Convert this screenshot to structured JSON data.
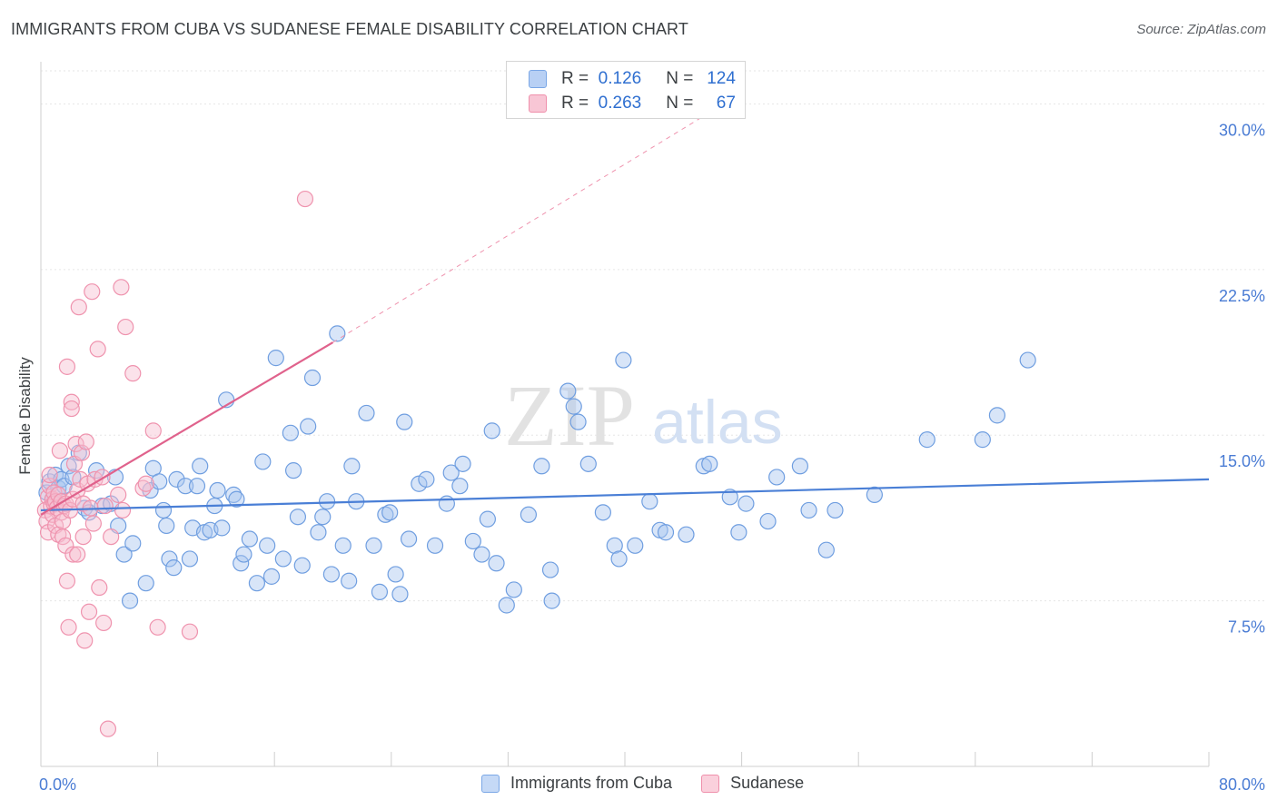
{
  "title": "IMMIGRANTS FROM CUBA VS SUDANESE FEMALE DISABILITY CORRELATION CHART",
  "source": "Source: ZipAtlas.com",
  "watermark": {
    "zip": "ZIP",
    "atlas": "atlas"
  },
  "legend": {
    "rows": [
      {
        "r_label": "R =",
        "r_value": "0.126",
        "n_label": "N =",
        "n_value": "124",
        "color": "#7aa7e6",
        "fill": "#b8d0f4"
      },
      {
        "r_label": "R =",
        "r_value": "0.263",
        "n_label": "N =",
        "n_value": "67",
        "color": "#ef8fab",
        "fill": "#f8c6d5"
      }
    ]
  },
  "bottom_legend": [
    {
      "label": "Immigrants from Cuba",
      "color": "#7aa7e6",
      "fill": "#c5d9f6"
    },
    {
      "label": "Sudanese",
      "color": "#ef8fab",
      "fill": "#fad0dc"
    }
  ],
  "chart_data": {
    "type": "scatter",
    "title": "IMMIGRANTS FROM CUBA VS SUDANESE FEMALE DISABILITY CORRELATION CHART",
    "xlabel": "",
    "ylabel": "Female Disability",
    "xlim": [
      0,
      80
    ],
    "ylim": [
      0,
      31.5
    ],
    "x_tick_labels": [
      "0.0%",
      "80.0%"
    ],
    "y_ticks": [
      7.5,
      15.0,
      22.5,
      30.0
    ],
    "y_tick_labels": [
      "7.5%",
      "15.0%",
      "22.5%",
      "30.0%"
    ],
    "grid": true,
    "series": [
      {
        "name": "Immigrants from Cuba",
        "color": "#4a7fd6",
        "stroke": "#6f9ee0",
        "fill": "#a9c6f0",
        "trend": {
          "x0": 0,
          "y0": 11.6,
          "x1": 80,
          "y1": 13.0,
          "dashed_to": null
        },
        "points": [
          [
            0.4,
            12.4
          ],
          [
            0.6,
            12.9
          ],
          [
            0.8,
            12.1
          ],
          [
            1.0,
            13.2
          ],
          [
            1.2,
            12.6
          ],
          [
            1.4,
            13.0
          ],
          [
            1.6,
            12.7
          ],
          [
            1.9,
            13.6
          ],
          [
            2.2,
            13.1
          ],
          [
            2.6,
            14.2
          ],
          [
            3.0,
            11.7
          ],
          [
            3.3,
            11.5
          ],
          [
            3.8,
            13.4
          ],
          [
            4.2,
            11.8
          ],
          [
            4.8,
            11.9
          ],
          [
            5.1,
            13.1
          ],
          [
            5.3,
            10.9
          ],
          [
            5.7,
            9.6
          ],
          [
            6.1,
            7.5
          ],
          [
            6.3,
            10.1
          ],
          [
            7.2,
            8.3
          ],
          [
            7.5,
            12.5
          ],
          [
            7.7,
            13.5
          ],
          [
            8.1,
            12.9
          ],
          [
            8.4,
            11.6
          ],
          [
            8.6,
            10.9
          ],
          [
            8.8,
            9.4
          ],
          [
            9.1,
            9.0
          ],
          [
            9.3,
            13.0
          ],
          [
            9.9,
            12.7
          ],
          [
            10.2,
            9.4
          ],
          [
            10.4,
            10.8
          ],
          [
            10.7,
            12.7
          ],
          [
            10.9,
            13.6
          ],
          [
            11.2,
            10.6
          ],
          [
            11.6,
            10.7
          ],
          [
            11.9,
            11.8
          ],
          [
            12.1,
            12.5
          ],
          [
            12.4,
            10.8
          ],
          [
            12.7,
            16.6
          ],
          [
            13.2,
            12.3
          ],
          [
            13.4,
            12.1
          ],
          [
            13.7,
            9.2
          ],
          [
            13.9,
            9.6
          ],
          [
            14.3,
            10.3
          ],
          [
            14.8,
            8.3
          ],
          [
            15.2,
            13.8
          ],
          [
            15.5,
            10.0
          ],
          [
            15.8,
            8.6
          ],
          [
            16.1,
            18.5
          ],
          [
            16.6,
            9.4
          ],
          [
            17.1,
            15.1
          ],
          [
            17.3,
            13.4
          ],
          [
            17.6,
            11.3
          ],
          [
            17.9,
            9.1
          ],
          [
            18.3,
            15.4
          ],
          [
            18.6,
            17.6
          ],
          [
            19.0,
            10.6
          ],
          [
            19.3,
            11.3
          ],
          [
            19.6,
            12.0
          ],
          [
            19.9,
            8.7
          ],
          [
            20.3,
            19.6
          ],
          [
            20.7,
            10.0
          ],
          [
            21.1,
            8.4
          ],
          [
            21.3,
            13.6
          ],
          [
            21.6,
            12.0
          ],
          [
            22.3,
            16.0
          ],
          [
            22.8,
            10.0
          ],
          [
            23.2,
            7.9
          ],
          [
            23.6,
            11.4
          ],
          [
            23.9,
            11.5
          ],
          [
            24.3,
            8.7
          ],
          [
            24.6,
            7.8
          ],
          [
            24.9,
            15.6
          ],
          [
            25.2,
            10.3
          ],
          [
            25.9,
            12.8
          ],
          [
            26.4,
            13.0
          ],
          [
            27.0,
            10.0
          ],
          [
            27.8,
            11.9
          ],
          [
            28.1,
            13.3
          ],
          [
            28.7,
            12.7
          ],
          [
            28.9,
            13.7
          ],
          [
            29.6,
            10.2
          ],
          [
            30.2,
            9.6
          ],
          [
            30.6,
            11.2
          ],
          [
            30.9,
            15.2
          ],
          [
            31.2,
            9.2
          ],
          [
            31.9,
            7.3
          ],
          [
            32.4,
            8.0
          ],
          [
            33.4,
            11.4
          ],
          [
            34.3,
            13.6
          ],
          [
            34.9,
            8.9
          ],
          [
            35.0,
            7.5
          ],
          [
            36.1,
            17.0
          ],
          [
            36.5,
            16.3
          ],
          [
            36.8,
            15.6
          ],
          [
            37.5,
            13.7
          ],
          [
            38.5,
            11.5
          ],
          [
            39.3,
            10.0
          ],
          [
            39.6,
            9.4
          ],
          [
            39.9,
            18.4
          ],
          [
            40.7,
            10.0
          ],
          [
            41.7,
            12.0
          ],
          [
            42.4,
            10.7
          ],
          [
            42.8,
            10.6
          ],
          [
            44.2,
            10.5
          ],
          [
            45.4,
            13.6
          ],
          [
            45.8,
            13.7
          ],
          [
            47.2,
            12.2
          ],
          [
            47.8,
            10.6
          ],
          [
            48.3,
            11.9
          ],
          [
            49.8,
            11.1
          ],
          [
            50.4,
            13.1
          ],
          [
            52.0,
            13.6
          ],
          [
            52.6,
            11.6
          ],
          [
            53.8,
            9.8
          ],
          [
            54.4,
            11.6
          ],
          [
            57.1,
            12.3
          ],
          [
            60.7,
            14.8
          ],
          [
            64.5,
            14.8
          ],
          [
            65.5,
            15.9
          ],
          [
            67.6,
            18.4
          ]
        ]
      },
      {
        "name": "Sudanese",
        "color": "#e0628c",
        "stroke": "#ef93ae",
        "fill": "#f6bfd0",
        "trend": {
          "x0": 0,
          "y0": 11.4,
          "x1": 20.0,
          "y1": 19.2,
          "dashed_to": [
            48.0,
            30.5
          ]
        },
        "points": [
          [
            0.3,
            11.6
          ],
          [
            0.4,
            11.1
          ],
          [
            0.5,
            12.2
          ],
          [
            0.5,
            10.6
          ],
          [
            0.6,
            12.7
          ],
          [
            0.6,
            13.2
          ],
          [
            0.7,
            11.8
          ],
          [
            0.8,
            12.1
          ],
          [
            0.8,
            11.4
          ],
          [
            0.9,
            12.4
          ],
          [
            0.9,
            11.9
          ],
          [
            1.0,
            10.9
          ],
          [
            1.0,
            12.0
          ],
          [
            1.1,
            11.7
          ],
          [
            1.2,
            12.3
          ],
          [
            1.2,
            10.5
          ],
          [
            1.3,
            14.3
          ],
          [
            1.4,
            12.0
          ],
          [
            1.4,
            11.5
          ],
          [
            1.5,
            10.4
          ],
          [
            1.5,
            11.1
          ],
          [
            1.6,
            11.8
          ],
          [
            1.7,
            11.9
          ],
          [
            1.7,
            10.0
          ],
          [
            1.8,
            18.1
          ],
          [
            1.8,
            8.4
          ],
          [
            1.9,
            6.3
          ],
          [
            2.0,
            11.6
          ],
          [
            2.1,
            16.5
          ],
          [
            2.1,
            16.2
          ],
          [
            2.2,
            12.1
          ],
          [
            2.2,
            9.6
          ],
          [
            2.3,
            13.7
          ],
          [
            2.4,
            14.6
          ],
          [
            2.5,
            12.5
          ],
          [
            2.5,
            9.6
          ],
          [
            2.6,
            20.8
          ],
          [
            2.7,
            13.0
          ],
          [
            2.8,
            14.2
          ],
          [
            2.9,
            10.4
          ],
          [
            2.9,
            11.9
          ],
          [
            3.0,
            5.7
          ],
          [
            3.1,
            14.7
          ],
          [
            3.2,
            12.8
          ],
          [
            3.3,
            7.0
          ],
          [
            3.4,
            11.7
          ],
          [
            3.5,
            21.5
          ],
          [
            3.6,
            11.0
          ],
          [
            3.7,
            13.0
          ],
          [
            3.9,
            18.9
          ],
          [
            4.0,
            8.1
          ],
          [
            4.2,
            13.1
          ],
          [
            4.3,
            6.5
          ],
          [
            4.4,
            11.8
          ],
          [
            4.6,
            1.7
          ],
          [
            4.8,
            10.4
          ],
          [
            5.3,
            12.3
          ],
          [
            5.5,
            21.7
          ],
          [
            5.6,
            11.6
          ],
          [
            5.8,
            19.9
          ],
          [
            6.3,
            17.8
          ],
          [
            7.0,
            12.6
          ],
          [
            7.2,
            12.8
          ],
          [
            7.7,
            15.2
          ],
          [
            8.0,
            6.3
          ],
          [
            10.2,
            6.1
          ],
          [
            18.1,
            25.7
          ]
        ]
      }
    ]
  }
}
